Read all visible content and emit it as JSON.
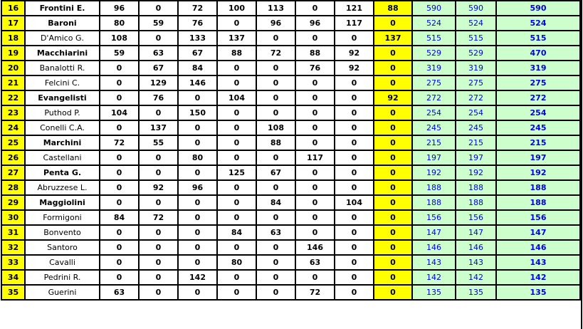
{
  "table": {
    "description": "ranking standings table rows 16-35",
    "colors": {
      "highlight": "#ffff00",
      "total_bg": "#ccffcc",
      "total_text": "#0000ee",
      "border": "#000000"
    },
    "rows": [
      {
        "rank": "16",
        "name": "Frontini E.",
        "name_bold": true,
        "values": [
          "96",
          "0",
          "72",
          "100",
          "113",
          "0",
          "121"
        ],
        "bonus": "88",
        "totals": [
          "590",
          "590",
          "590"
        ]
      },
      {
        "rank": "17",
        "name": "Baroni",
        "name_bold": true,
        "values": [
          "80",
          "59",
          "76",
          "0",
          "96",
          "96",
          "117"
        ],
        "bonus": "0",
        "totals": [
          "524",
          "524",
          "524"
        ]
      },
      {
        "rank": "18",
        "name": "D'Amico G.",
        "name_bold": false,
        "values": [
          "108",
          "0",
          "133",
          "137",
          "0",
          "0",
          "0"
        ],
        "bonus": "137",
        "totals": [
          "515",
          "515",
          "515"
        ]
      },
      {
        "rank": "19",
        "name": "Macchiarini",
        "name_bold": true,
        "values": [
          "59",
          "63",
          "67",
          "88",
          "72",
          "88",
          "92"
        ],
        "bonus": "0",
        "totals": [
          "529",
          "529",
          "470"
        ]
      },
      {
        "rank": "20",
        "name": "Banalotti R.",
        "name_bold": false,
        "values": [
          "0",
          "67",
          "84",
          "0",
          "0",
          "76",
          "92"
        ],
        "bonus": "0",
        "totals": [
          "319",
          "319",
          "319"
        ]
      },
      {
        "rank": "21",
        "name": "Felcini C.",
        "name_bold": false,
        "values": [
          "0",
          "129",
          "146",
          "0",
          "0",
          "0",
          "0"
        ],
        "bonus": "0",
        "totals": [
          "275",
          "275",
          "275"
        ]
      },
      {
        "rank": "22",
        "name": "Evangelisti",
        "name_bold": true,
        "values": [
          "0",
          "76",
          "0",
          "104",
          "0",
          "0",
          "0"
        ],
        "bonus": "92",
        "totals": [
          "272",
          "272",
          "272"
        ]
      },
      {
        "rank": "23",
        "name": "Puthod P.",
        "name_bold": false,
        "values": [
          "104",
          "0",
          "150",
          "0",
          "0",
          "0",
          "0"
        ],
        "bonus": "0",
        "totals": [
          "254",
          "254",
          "254"
        ]
      },
      {
        "rank": "24",
        "name": "Conelli C.A.",
        "name_bold": false,
        "values": [
          "0",
          "137",
          "0",
          "0",
          "108",
          "0",
          "0"
        ],
        "bonus": "0",
        "totals": [
          "245",
          "245",
          "245"
        ]
      },
      {
        "rank": "25",
        "name": "Marchini",
        "name_bold": true,
        "values": [
          "72",
          "55",
          "0",
          "0",
          "88",
          "0",
          "0"
        ],
        "bonus": "0",
        "totals": [
          "215",
          "215",
          "215"
        ]
      },
      {
        "rank": "26",
        "name": "Castellani",
        "name_bold": false,
        "values": [
          "0",
          "0",
          "80",
          "0",
          "0",
          "117",
          "0"
        ],
        "bonus": "0",
        "totals": [
          "197",
          "197",
          "197"
        ]
      },
      {
        "rank": "27",
        "name": "Penta G.",
        "name_bold": true,
        "values": [
          "0",
          "0",
          "0",
          "125",
          "67",
          "0",
          "0"
        ],
        "bonus": "0",
        "totals": [
          "192",
          "192",
          "192"
        ]
      },
      {
        "rank": "28",
        "name": "Abruzzese L.",
        "name_bold": false,
        "values": [
          "0",
          "92",
          "96",
          "0",
          "0",
          "0",
          "0"
        ],
        "bonus": "0",
        "totals": [
          "188",
          "188",
          "188"
        ]
      },
      {
        "rank": "29",
        "name": "Maggiolini",
        "name_bold": true,
        "values": [
          "0",
          "0",
          "0",
          "0",
          "84",
          "0",
          "104"
        ],
        "bonus": "0",
        "totals": [
          "188",
          "188",
          "188"
        ]
      },
      {
        "rank": "30",
        "name": "Formigoni",
        "name_bold": false,
        "values": [
          "84",
          "72",
          "0",
          "0",
          "0",
          "0",
          "0"
        ],
        "bonus": "0",
        "totals": [
          "156",
          "156",
          "156"
        ]
      },
      {
        "rank": "31",
        "name": "Bonvento",
        "name_bold": false,
        "values": [
          "0",
          "0",
          "0",
          "84",
          "63",
          "0",
          "0"
        ],
        "bonus": "0",
        "totals": [
          "147",
          "147",
          "147"
        ]
      },
      {
        "rank": "32",
        "name": "Santoro",
        "name_bold": false,
        "values": [
          "0",
          "0",
          "0",
          "0",
          "0",
          "146",
          "0"
        ],
        "bonus": "0",
        "totals": [
          "146",
          "146",
          "146"
        ]
      },
      {
        "rank": "33",
        "name": "Cavalli",
        "name_bold": false,
        "values": [
          "0",
          "0",
          "0",
          "80",
          "0",
          "63",
          "0"
        ],
        "bonus": "0",
        "totals": [
          "143",
          "143",
          "143"
        ]
      },
      {
        "rank": "34",
        "name": "Pedrini R.",
        "name_bold": false,
        "values": [
          "0",
          "0",
          "142",
          "0",
          "0",
          "0",
          "0"
        ],
        "bonus": "0",
        "totals": [
          "142",
          "142",
          "142"
        ]
      },
      {
        "rank": "35",
        "name": "Guerini",
        "name_bold": false,
        "values": [
          "63",
          "0",
          "0",
          "0",
          "0",
          "72",
          "0"
        ],
        "bonus": "0",
        "totals": [
          "135",
          "135",
          "135"
        ]
      }
    ]
  }
}
